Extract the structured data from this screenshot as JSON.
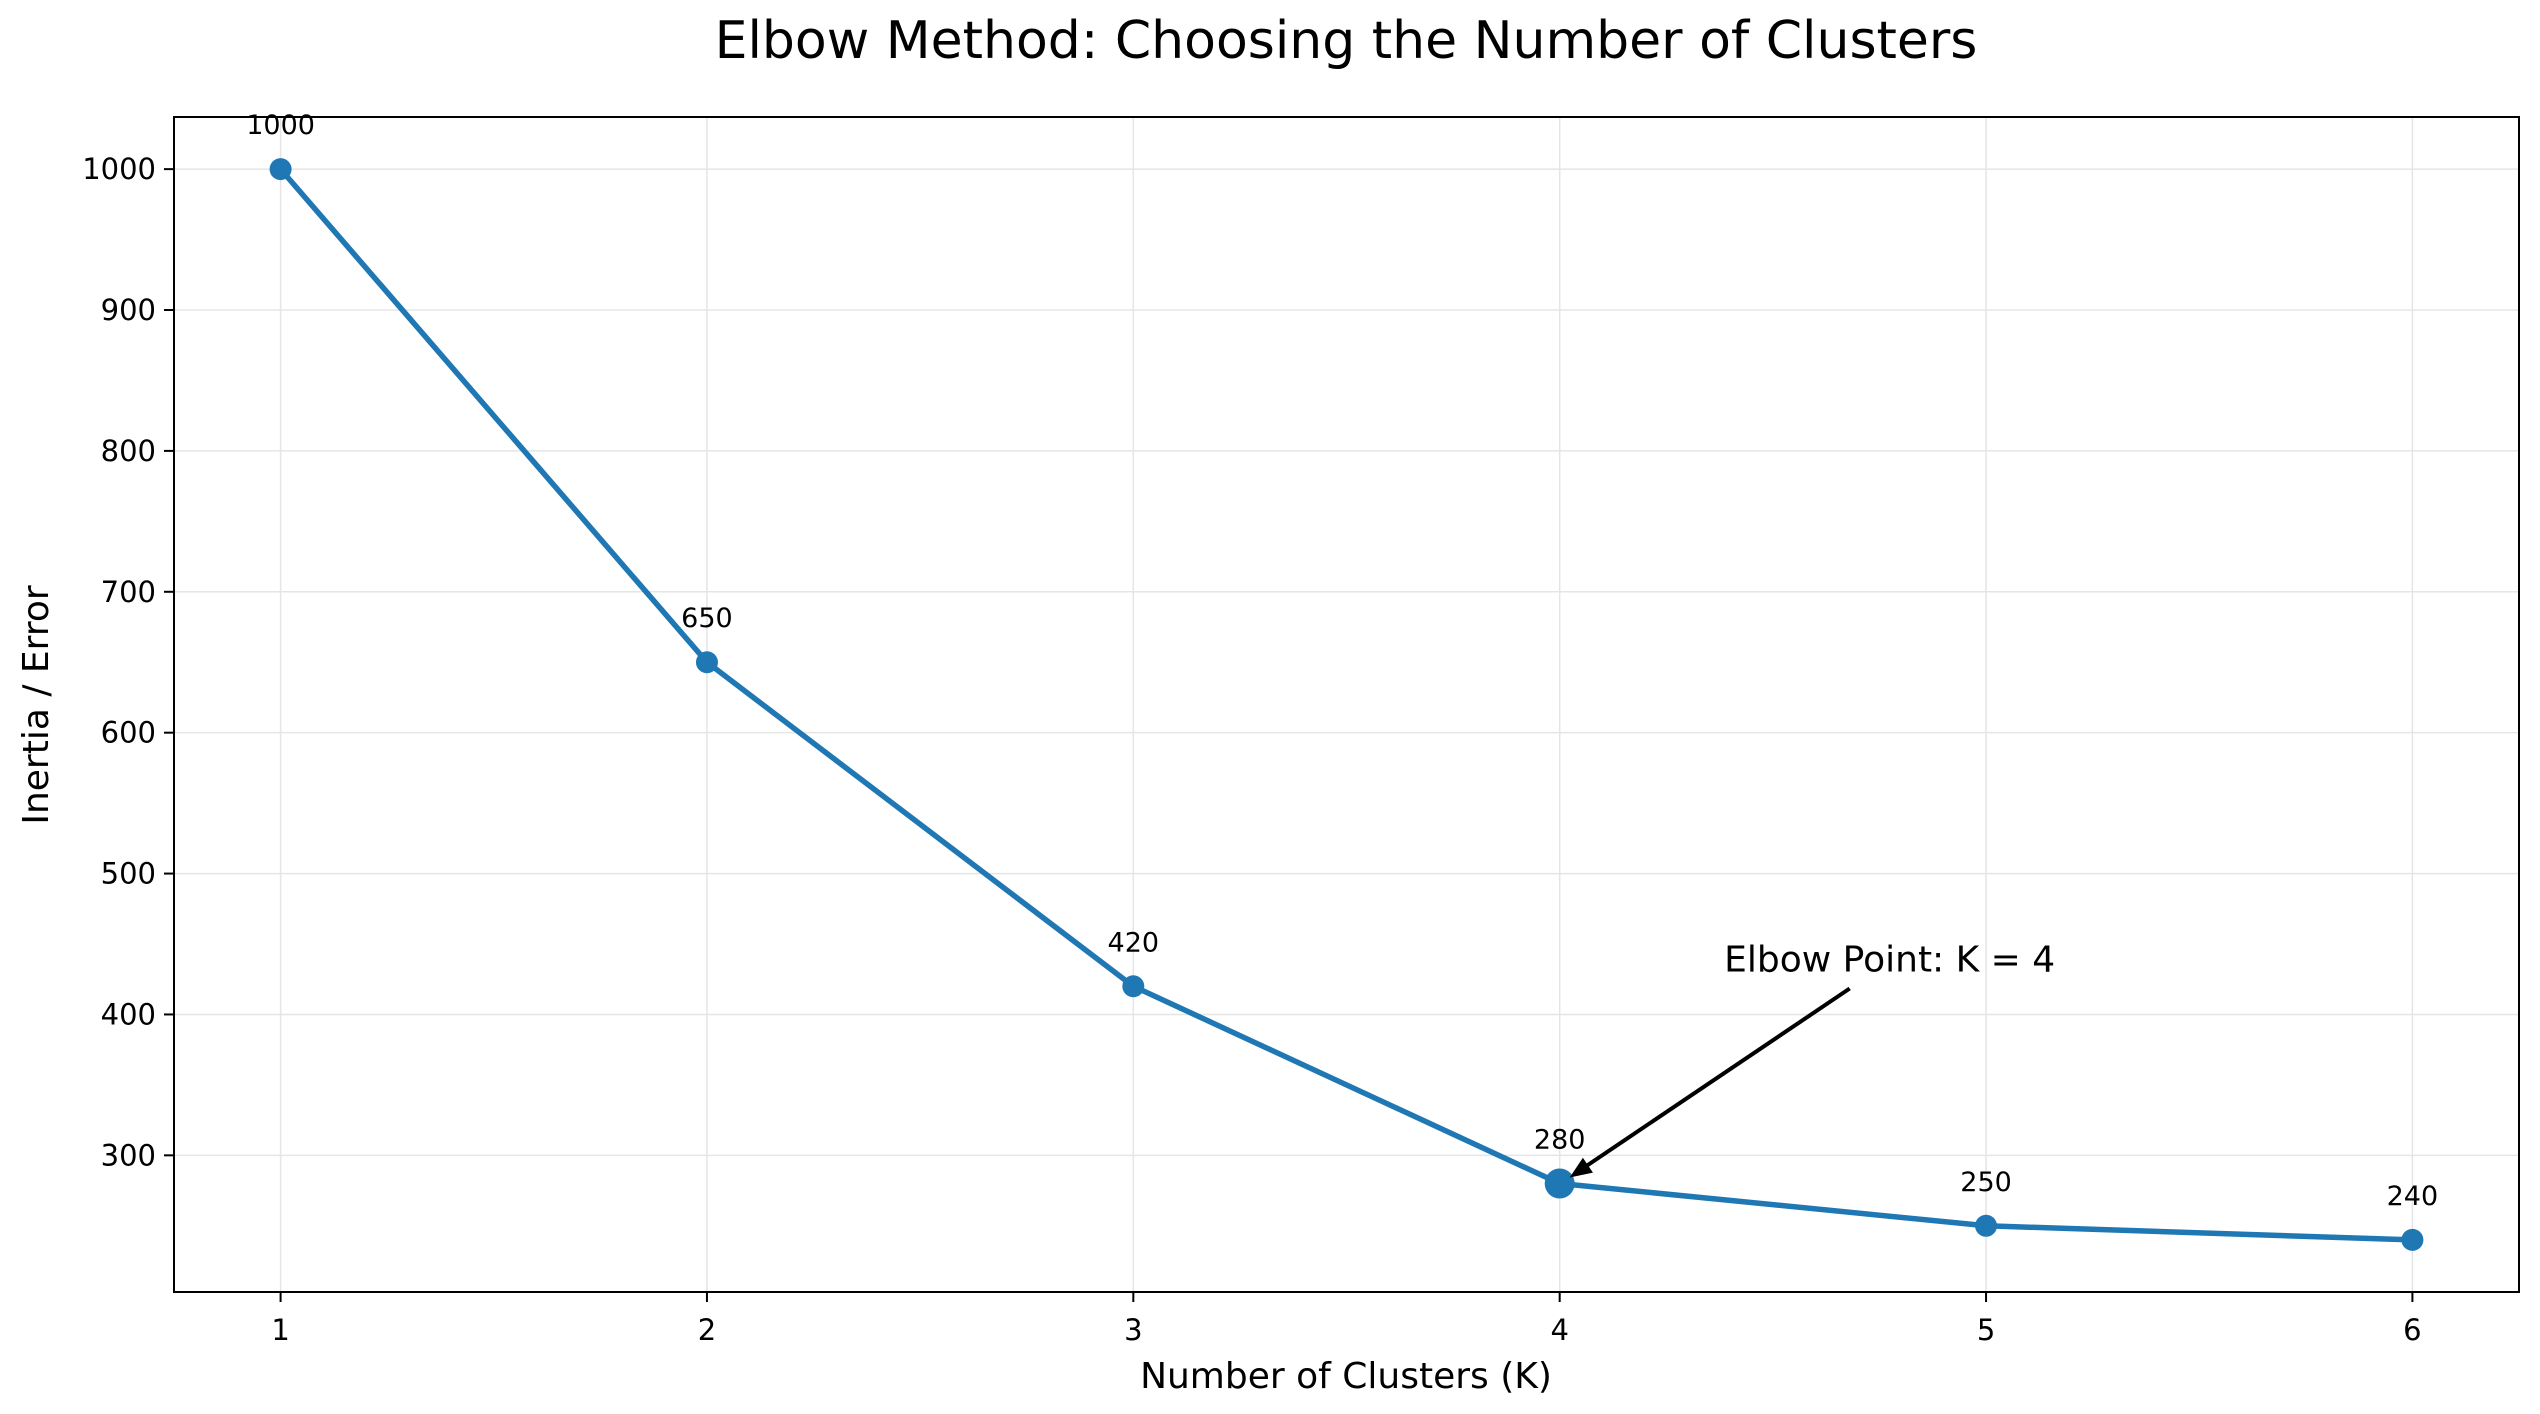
{
  "chart_data": {
    "type": "line",
    "title": "Elbow Method: Choosing the Number of Clusters",
    "xlabel": "Number of Clusters (K)",
    "ylabel": "Inertia / Error",
    "x": [
      1,
      2,
      3,
      4,
      5,
      6
    ],
    "series": [
      {
        "values": [
          1000,
          650,
          420,
          280,
          250,
          240
        ]
      }
    ],
    "data_labels": [
      "1000",
      "650",
      "420",
      "280",
      "250",
      "240"
    ],
    "xticks": [
      "1",
      "2",
      "3",
      "4",
      "5",
      "6"
    ],
    "yticks": [
      "300",
      "400",
      "500",
      "600",
      "700",
      "800",
      "900",
      "1000"
    ],
    "xlim": [
      0.75,
      6.25
    ],
    "ylim": [
      203,
      1037
    ],
    "grid": true,
    "highlight": {
      "x": 4,
      "y": 280
    },
    "annotation": {
      "text": "Elbow Point: K = 4",
      "x": 4,
      "y": 280
    },
    "colors": {
      "line": "#1f77b4",
      "arrow": "#000000",
      "grid": "#e5e5e5"
    }
  }
}
